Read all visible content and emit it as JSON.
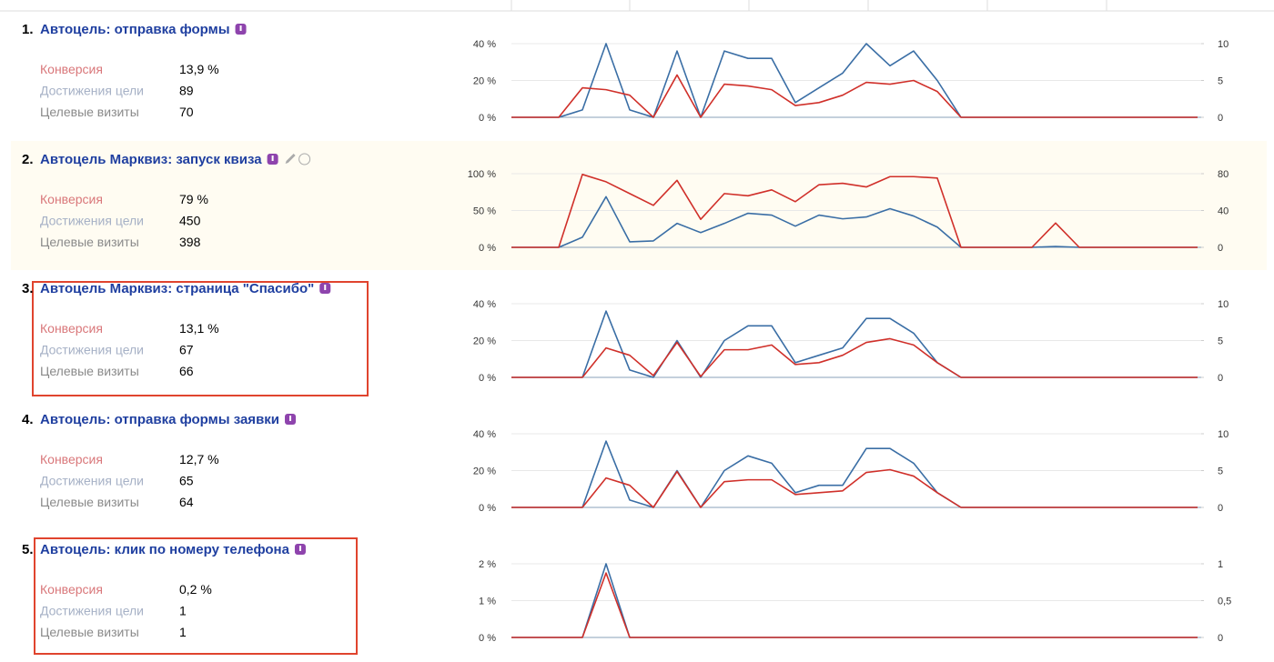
{
  "goals": [
    {
      "number": "1.",
      "title": "Автоцель: отправка формы",
      "stats": [
        {
          "label": "Конверсия",
          "value": "13,9 %"
        },
        {
          "label": "Достижения цели",
          "value": "89"
        },
        {
          "label": "Целевые визиты",
          "value": "70"
        }
      ],
      "chart": {
        "type": "line",
        "ylim": [
          0,
          40
        ],
        "yticks": [
          {
            "value": 0,
            "label": "0 %"
          },
          {
            "value": 20,
            "label": "20 %"
          },
          {
            "value": 40,
            "label": "40 %"
          }
        ],
        "y2lim": [
          0,
          10
        ],
        "y2ticks": [
          0,
          5,
          10
        ],
        "grid": true,
        "series": [
          {
            "color": "#d0302a",
            "values": [
              0,
              0,
              0,
              16,
              15,
              12,
              0,
              23,
              0,
              18,
              17,
              15,
              6.4,
              8,
              12,
              19,
              18,
              20,
              14,
              0,
              0,
              0,
              0,
              0,
              0,
              0,
              0,
              0,
              0,
              0
            ]
          },
          {
            "color": "#3a6ea5",
            "axis": "y2",
            "values": [
              0,
              0,
              0,
              1,
              10,
              1,
              0,
              9,
              0,
              9,
              8,
              8,
              2,
              4,
              6,
              10,
              7,
              9,
              5,
              0,
              0,
              0,
              0,
              0,
              0,
              0,
              0,
              0,
              0,
              0
            ]
          }
        ]
      }
    },
    {
      "number": "2.",
      "title": "Автоцель Марквиз: запуск квиза",
      "stats": [
        {
          "label": "Конверсия",
          "value": "79 %"
        },
        {
          "label": "Достижения цели",
          "value": "450"
        },
        {
          "label": "Целевые визиты",
          "value": "398"
        }
      ],
      "chart": {
        "type": "line",
        "ylim": [
          0,
          100
        ],
        "yticks": [
          {
            "value": 0,
            "label": "0 %"
          },
          {
            "value": 50,
            "label": "50 %"
          },
          {
            "value": 100,
            "label": "100 %"
          }
        ],
        "y2lim": [
          0,
          80
        ],
        "y2ticks": [
          0,
          40,
          80
        ],
        "grid": true,
        "series": [
          {
            "color": "#d0302a",
            "values": [
              0,
              0,
              0,
              99,
              89,
              73,
              57,
              91,
              38,
              73,
              70,
              78,
              62,
              85,
              87,
              82,
              96,
              96,
              94,
              0,
              0,
              0,
              0,
              33,
              0,
              0,
              0,
              0,
              0,
              0
            ]
          },
          {
            "color": "#3a6ea5",
            "axis": "y2",
            "values": [
              0,
              0,
              0,
              11,
              55,
              6,
              7,
              26,
              16,
              26,
              37,
              35,
              23,
              35,
              31,
              33,
              42,
              34,
              22,
              0,
              0,
              0,
              0,
              1,
              0,
              0,
              0,
              0,
              0,
              0
            ]
          }
        ]
      }
    },
    {
      "number": "3.",
      "title": "Автоцель Марквиз: страница \"Спасибо\"",
      "stats": [
        {
          "label": "Конверсия",
          "value": "13,1 %"
        },
        {
          "label": "Достижения цели",
          "value": "67"
        },
        {
          "label": "Целевые визиты",
          "value": "66"
        }
      ],
      "chart": {
        "type": "line",
        "ylim": [
          0,
          40
        ],
        "yticks": [
          {
            "value": 0,
            "label": "0 %"
          },
          {
            "value": 20,
            "label": "20 %"
          },
          {
            "value": 40,
            "label": "40 %"
          }
        ],
        "y2lim": [
          0,
          10
        ],
        "y2ticks": [
          0,
          5,
          10
        ],
        "grid": true,
        "series": [
          {
            "color": "#d0302a",
            "values": [
              0,
              0,
              0,
              0,
              16,
              12,
              1,
              19,
              0.5,
              15,
              15,
              17.6,
              7,
              8,
              12,
              19,
              21,
              17.6,
              8,
              0,
              0,
              0,
              0,
              0,
              0,
              0,
              0,
              0,
              0,
              0
            ]
          },
          {
            "color": "#3a6ea5",
            "axis": "y2",
            "values": [
              0,
              0,
              0,
              0,
              9,
              1,
              0,
              5,
              0,
              5,
              7,
              7,
              2,
              3,
              4,
              8,
              8,
              6,
              2,
              0,
              0,
              0,
              0,
              0,
              0,
              0,
              0,
              0,
              0,
              0
            ]
          }
        ]
      }
    },
    {
      "number": "4.",
      "title": "Автоцель: отправка формы заявки",
      "stats": [
        {
          "label": "Конверсия",
          "value": "12,7 %"
        },
        {
          "label": "Достижения цели",
          "value": "65"
        },
        {
          "label": "Целевые визиты",
          "value": "64"
        }
      ],
      "chart": {
        "type": "line",
        "ylim": [
          0,
          40
        ],
        "yticks": [
          {
            "value": 0,
            "label": "0 %"
          },
          {
            "value": 20,
            "label": "20 %"
          },
          {
            "value": 40,
            "label": "40 %"
          }
        ],
        "y2lim": [
          0,
          10
        ],
        "y2ticks": [
          0,
          5,
          10
        ],
        "grid": true,
        "series": [
          {
            "color": "#d0302a",
            "values": [
              0,
              0,
              0,
              0,
              16,
              12,
              0,
              19.5,
              0,
              14,
              15,
              15,
              7,
              8,
              9,
              19,
              20.5,
              17,
              8,
              0,
              0,
              0,
              0,
              0,
              0,
              0,
              0,
              0,
              0,
              0
            ]
          },
          {
            "color": "#3a6ea5",
            "axis": "y2",
            "values": [
              0,
              0,
              0,
              0,
              9,
              1,
              0,
              5,
              0,
              5,
              7,
              6,
              2,
              3,
              3,
              8,
              8,
              6,
              2,
              0,
              0,
              0,
              0,
              0,
              0,
              0,
              0,
              0,
              0,
              0
            ]
          }
        ]
      }
    },
    {
      "number": "5.",
      "title": "Автоцель: клик по номеру телефона",
      "stats": [
        {
          "label": "Конверсия",
          "value": "0,2 %"
        },
        {
          "label": "Достижения цели",
          "value": "1"
        },
        {
          "label": "Целевые визиты",
          "value": "1"
        }
      ],
      "chart": {
        "type": "line",
        "ylim": [
          0,
          2
        ],
        "yticks": [
          {
            "value": 0,
            "label": "0 %"
          },
          {
            "value": 1,
            "label": "1 %"
          },
          {
            "value": 2,
            "label": "2 %"
          }
        ],
        "y2lim": [
          0,
          1
        ],
        "y2ticks": [
          0,
          {
            "value": 0.5,
            "label": "0,5"
          },
          1
        ],
        "grid": true,
        "series": [
          {
            "color": "#d0302a",
            "values": [
              0,
              0,
              0,
              0,
              1.75,
              0,
              0,
              0,
              0,
              0,
              0,
              0,
              0,
              0,
              0,
              0,
              0,
              0,
              0,
              0,
              0,
              0,
              0,
              0,
              0,
              0,
              0,
              0,
              0,
              0
            ]
          },
          {
            "color": "#3a6ea5",
            "axis": "y2",
            "values": [
              0,
              0,
              0,
              0,
              1,
              0,
              0,
              0,
              0,
              0,
              0,
              0,
              0,
              0,
              0,
              0,
              0,
              0,
              0,
              0,
              0,
              0,
              0,
              0,
              0,
              0,
              0,
              0,
              0,
              0
            ]
          }
        ]
      }
    }
  ]
}
